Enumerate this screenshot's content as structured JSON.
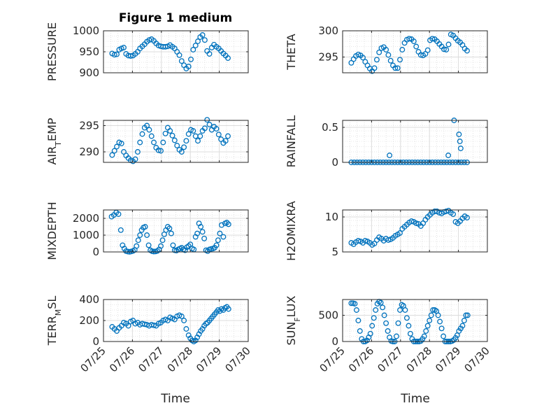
{
  "figure": {
    "title": "Figure 1 medium",
    "xlabel": "Time"
  },
  "chart_data": [
    {
      "type": "scatter",
      "ylabel": "PRESSURE",
      "ylim": [
        900,
        1000
      ],
      "yticks": [
        900,
        950,
        1000
      ],
      "xticks": [
        "07/25",
        "07/26",
        "07/27",
        "07/28",
        "07/29",
        "07/30"
      ],
      "grid": true,
      "x": [
        0.3,
        0.38,
        0.46,
        0.54,
        0.62,
        0.7,
        0.78,
        0.86,
        0.94,
        1.02,
        1.1,
        1.18,
        1.26,
        1.34,
        1.42,
        1.5,
        1.58,
        1.66,
        1.74,
        1.82,
        1.9,
        1.98,
        2.06,
        2.14,
        2.22,
        2.3,
        2.38,
        2.46,
        2.54,
        2.62,
        2.7,
        2.78,
        2.86,
        2.94,
        3.02,
        3.1,
        3.18,
        3.26,
        3.34,
        3.42,
        3.5,
        3.58,
        3.66,
        3.74,
        3.82,
        3.9,
        3.98,
        4.06,
        4.14,
        4.22,
        4.3
      ],
      "y": [
        946,
        943,
        944,
        955,
        958,
        960,
        945,
        941,
        940,
        941,
        945,
        950,
        958,
        963,
        968,
        974,
        978,
        980,
        976,
        970,
        965,
        963,
        962,
        962,
        963,
        966,
        962,
        958,
        950,
        942,
        928,
        918,
        910,
        915,
        932,
        955,
        965,
        975,
        985,
        990,
        978,
        952,
        945,
        960,
        967,
        962,
        958,
        952,
        946,
        941,
        935
      ]
    },
    {
      "type": "scatter",
      "ylabel": "THETA",
      "ylim": [
        292,
        300
      ],
      "yticks": [
        295,
        300
      ],
      "xticks": [
        "07/25",
        "07/26",
        "07/27",
        "07/28",
        "07/29",
        "07/30"
      ],
      "grid": true,
      "x": [
        0.3,
        0.38,
        0.46,
        0.54,
        0.62,
        0.7,
        0.78,
        0.86,
        0.94,
        1.02,
        1.1,
        1.18,
        1.26,
        1.34,
        1.42,
        1.5,
        1.58,
        1.66,
        1.74,
        1.82,
        1.9,
        1.98,
        2.06,
        2.14,
        2.22,
        2.3,
        2.38,
        2.46,
        2.54,
        2.62,
        2.7,
        2.78,
        2.86,
        2.94,
        3.02,
        3.1,
        3.18,
        3.26,
        3.34,
        3.42,
        3.5,
        3.58,
        3.66,
        3.74,
        3.82,
        3.9,
        3.98,
        4.06,
        4.14,
        4.22,
        4.3
      ],
      "y": [
        293.9,
        294.6,
        295.2,
        295.5,
        295.3,
        294.9,
        294.1,
        293.4,
        292.8,
        292.3,
        292.9,
        294.5,
        295.9,
        296.7,
        296.9,
        296.4,
        295.4,
        294.3,
        293.4,
        292.9,
        292.9,
        294.5,
        296.4,
        297.7,
        298.3,
        298.5,
        298.4,
        298.0,
        297.0,
        296.0,
        295.4,
        295.3,
        295.6,
        296.3,
        298.2,
        298.5,
        298.4,
        298.0,
        297.5,
        297.0,
        296.5,
        296.4,
        297.4,
        299.3,
        299.1,
        298.6,
        298.1,
        297.8,
        297.3,
        296.6,
        296.2
      ]
    },
    {
      "type": "scatter",
      "ylabel": "AIR",
      "ylabel_sub": "T",
      "ylabel_suffix": "EMP",
      "ylim": [
        288,
        296
      ],
      "yticks": [
        290,
        295
      ],
      "xticks": [
        "07/25",
        "07/26",
        "07/27",
        "07/28",
        "07/29",
        "07/30"
      ],
      "grid": true,
      "x": [
        0.3,
        0.38,
        0.46,
        0.54,
        0.62,
        0.7,
        0.78,
        0.86,
        0.94,
        1.02,
        1.1,
        1.18,
        1.26,
        1.34,
        1.42,
        1.5,
        1.58,
        1.66,
        1.74,
        1.82,
        1.9,
        1.98,
        2.06,
        2.14,
        2.22,
        2.3,
        2.38,
        2.46,
        2.54,
        2.62,
        2.7,
        2.78,
        2.86,
        2.94,
        3.02,
        3.1,
        3.18,
        3.26,
        3.34,
        3.42,
        3.5,
        3.58,
        3.66,
        3.74,
        3.82,
        3.9,
        3.98,
        4.06,
        4.14,
        4.22,
        4.3
      ],
      "y": [
        289.4,
        290.2,
        291.0,
        291.8,
        291.6,
        290.0,
        289.3,
        288.8,
        288.4,
        288.2,
        288.6,
        290.0,
        291.8,
        293.4,
        294.6,
        295.0,
        294.2,
        293.0,
        291.8,
        290.8,
        290.3,
        290.2,
        291.8,
        293.5,
        294.6,
        294.0,
        293.1,
        292.2,
        291.2,
        290.4,
        290.0,
        290.9,
        292.1,
        293.4,
        294.2,
        294.0,
        293.0,
        292.1,
        293.0,
        294.0,
        294.5,
        296.1,
        295.2,
        294.2,
        294.8,
        294.4,
        293.3,
        292.4,
        291.7,
        292.1,
        293.0
      ]
    },
    {
      "type": "scatter",
      "ylabel": "RAINFALL",
      "ylim": [
        0,
        0.6
      ],
      "yticks": [
        0,
        0.5
      ],
      "xticks": [
        "07/25",
        "07/26",
        "07/27",
        "07/28",
        "07/29",
        "07/30"
      ],
      "grid": true,
      "x": [
        0.3,
        0.4,
        0.5,
        0.6,
        0.7,
        0.8,
        0.9,
        1.0,
        1.1,
        1.2,
        1.3,
        1.4,
        1.5,
        1.6,
        1.7,
        1.8,
        1.9,
        2.0,
        2.1,
        2.2,
        2.3,
        2.4,
        2.5,
        2.6,
        2.7,
        2.8,
        2.9,
        3.0,
        3.1,
        3.2,
        3.3,
        3.4,
        3.5,
        3.6,
        3.7,
        3.8,
        3.9,
        4.0,
        4.1,
        4.2,
        4.3,
        1.62,
        3.65,
        3.85,
        4.02,
        4.05,
        4.08
      ],
      "y": [
        0,
        0,
        0,
        0,
        0,
        0,
        0,
        0,
        0,
        0,
        0,
        0,
        0,
        0,
        0,
        0,
        0,
        0,
        0,
        0,
        0,
        0,
        0,
        0,
        0,
        0,
        0,
        0,
        0,
        0,
        0,
        0,
        0,
        0,
        0,
        0,
        0,
        0,
        0,
        0,
        0,
        0.1,
        0.1,
        0.6,
        0.4,
        0.3,
        0.2
      ]
    },
    {
      "type": "scatter",
      "ylabel": "MIXDEPTH",
      "ylim": [
        0,
        2500
      ],
      "yticks": [
        0,
        1000,
        2000
      ],
      "xticks": [
        "07/25",
        "07/26",
        "07/27",
        "07/28",
        "07/29",
        "07/30"
      ],
      "grid": true,
      "x": [
        0.28,
        0.36,
        0.44,
        0.52,
        0.6,
        0.66,
        0.72,
        0.78,
        0.84,
        0.9,
        0.96,
        1.02,
        1.08,
        1.14,
        1.2,
        1.26,
        1.32,
        1.38,
        1.44,
        1.5,
        1.56,
        1.62,
        1.68,
        1.74,
        1.8,
        1.86,
        1.92,
        1.98,
        2.04,
        2.1,
        2.16,
        2.22,
        2.28,
        2.34,
        2.4,
        2.46,
        2.52,
        2.58,
        2.64,
        2.7,
        2.76,
        2.82,
        2.88,
        2.94,
        3.0,
        3.06,
        3.12,
        3.18,
        3.24,
        3.3,
        3.36,
        3.42,
        3.48,
        3.54,
        3.6,
        3.66,
        3.72,
        3.78,
        3.84,
        3.9,
        3.96,
        4.02,
        4.08,
        4.14,
        4.2,
        4.26,
        4.32
      ],
      "y": [
        2100,
        2200,
        2350,
        2250,
        1300,
        400,
        200,
        50,
        20,
        10,
        30,
        60,
        120,
        350,
        700,
        1000,
        1300,
        1450,
        1500,
        1000,
        400,
        100,
        40,
        20,
        30,
        60,
        150,
        350,
        700,
        1050,
        1300,
        1500,
        1400,
        1100,
        400,
        100,
        80,
        150,
        200,
        250,
        150,
        100,
        280,
        350,
        450,
        200,
        150,
        900,
        1100,
        1700,
        1500,
        1200,
        800,
        100,
        50,
        150,
        180,
        200,
        250,
        400,
        700,
        1100,
        1600,
        900,
        1700,
        1750,
        1650
      ]
    },
    {
      "type": "scatter",
      "ylabel": "H2OMIXRA",
      "ylim": [
        5,
        11
      ],
      "yticks": [
        5,
        10
      ],
      "xticks": [
        "07/25",
        "07/26",
        "07/27",
        "07/28",
        "07/29",
        "07/30"
      ],
      "grid": true,
      "x": [
        0.3,
        0.38,
        0.46,
        0.54,
        0.62,
        0.7,
        0.78,
        0.86,
        0.94,
        1.02,
        1.1,
        1.18,
        1.26,
        1.34,
        1.42,
        1.5,
        1.58,
        1.66,
        1.74,
        1.82,
        1.9,
        1.98,
        2.06,
        2.14,
        2.22,
        2.3,
        2.38,
        2.46,
        2.54,
        2.62,
        2.7,
        2.78,
        2.86,
        2.94,
        3.02,
        3.1,
        3.18,
        3.26,
        3.34,
        3.42,
        3.5,
        3.58,
        3.66,
        3.74,
        3.82,
        3.9,
        3.98,
        4.06,
        4.14,
        4.22,
        4.3
      ],
      "y": [
        6.3,
        6.1,
        6.4,
        6.6,
        6.5,
        6.3,
        6.6,
        6.5,
        6.3,
        6.0,
        6.2,
        6.7,
        7.1,
        6.9,
        6.6,
        6.9,
        6.7,
        6.8,
        7.0,
        7.3,
        7.5,
        7.7,
        8.3,
        8.6,
        8.9,
        9.2,
        9.4,
        9.3,
        9.1,
        9.0,
        8.7,
        9.1,
        9.6,
        10.0,
        10.3,
        10.6,
        10.8,
        10.8,
        10.6,
        10.5,
        10.7,
        10.8,
        10.9,
        10.6,
        10.4,
        9.3,
        9.1,
        9.4,
        9.8,
        10.1,
        9.9
      ]
    },
    {
      "type": "scatter",
      "ylabel": "TERR",
      "ylabel_sub": "M",
      "ylabel_suffix": "SL",
      "ylim": [
        0,
        400
      ],
      "yticks": [
        0,
        200,
        400
      ],
      "xticks": [
        "07/25",
        "07/26",
        "07/27",
        "07/28",
        "07/29",
        "07/30"
      ],
      "grid": true,
      "x": [
        0.3,
        0.38,
        0.46,
        0.54,
        0.62,
        0.7,
        0.78,
        0.86,
        0.94,
        1.02,
        1.1,
        1.18,
        1.26,
        1.34,
        1.42,
        1.5,
        1.58,
        1.66,
        1.74,
        1.82,
        1.9,
        1.98,
        2.06,
        2.14,
        2.22,
        2.3,
        2.38,
        2.46,
        2.54,
        2.62,
        2.7,
        2.78,
        2.86,
        2.94,
        3.0,
        3.06,
        3.12,
        3.18,
        3.24,
        3.3,
        3.36,
        3.42,
        3.48,
        3.54,
        3.6,
        3.66,
        3.72,
        3.78,
        3.84,
        3.9,
        3.96,
        4.02,
        4.08,
        4.14,
        4.2,
        4.26,
        4.32
      ],
      "y": [
        140,
        120,
        100,
        130,
        150,
        180,
        170,
        150,
        190,
        200,
        170,
        180,
        160,
        170,
        165,
        160,
        150,
        160,
        155,
        150,
        170,
        180,
        200,
        210,
        200,
        230,
        220,
        210,
        240,
        250,
        240,
        200,
        120,
        60,
        30,
        10,
        0,
        10,
        40,
        70,
        100,
        120,
        150,
        170,
        180,
        200,
        220,
        240,
        260,
        280,
        300,
        290,
        310,
        300,
        320,
        330,
        310
      ]
    },
    {
      "type": "scatter",
      "ylabel": "SUN",
      "ylabel_sub": "F",
      "ylabel_suffix": "LUX",
      "ylim": [
        0,
        800
      ],
      "yticks": [
        0,
        500
      ],
      "xticks": [
        "07/25",
        "07/26",
        "07/27",
        "07/28",
        "07/29",
        "07/30"
      ],
      "grid": true,
      "x": [
        0.3,
        0.36,
        0.42,
        0.48,
        0.54,
        0.6,
        0.66,
        0.72,
        0.78,
        0.84,
        0.9,
        0.96,
        1.02,
        1.08,
        1.14,
        1.2,
        1.26,
        1.32,
        1.38,
        1.44,
        1.5,
        1.56,
        1.62,
        1.68,
        1.74,
        1.8,
        1.86,
        1.92,
        1.98,
        2.04,
        2.1,
        2.16,
        2.22,
        2.28,
        2.34,
        2.4,
        2.46,
        2.52,
        2.58,
        2.64,
        2.7,
        2.76,
        2.82,
        2.88,
        2.94,
        3.0,
        3.06,
        3.12,
        3.18,
        3.24,
        3.3,
        3.36,
        3.42,
        3.48,
        3.54,
        3.6,
        3.66,
        3.72,
        3.78,
        3.84,
        3.9,
        3.96,
        4.02,
        4.08,
        4.14,
        4.2,
        4.26,
        4.32
      ],
      "y": [
        730,
        730,
        720,
        600,
        400,
        200,
        50,
        0,
        0,
        20,
        80,
        150,
        300,
        450,
        600,
        720,
        760,
        740,
        650,
        500,
        350,
        200,
        80,
        10,
        0,
        0,
        100,
        350,
        600,
        700,
        680,
        600,
        450,
        300,
        150,
        50,
        0,
        0,
        0,
        0,
        10,
        50,
        100,
        200,
        300,
        400,
        500,
        600,
        600,
        580,
        500,
        380,
        250,
        100,
        0,
        0,
        0,
        0,
        10,
        30,
        70,
        120,
        200,
        250,
        300,
        400,
        500,
        500
      ]
    }
  ]
}
